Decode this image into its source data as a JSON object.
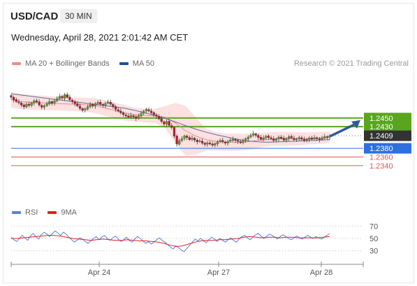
{
  "header": {
    "pair": "USD/CAD",
    "timeframe": "30 MIN",
    "datetime": "Wednesday, April 28, 2021 2:01:42 AM CET",
    "credit": "Research © 2021 Trading Central"
  },
  "legend": {
    "main": [
      {
        "label": "MA 20 + Bollinger Bands",
        "color": "#f08a8a"
      },
      {
        "label": "MA 50",
        "color": "#1f4e9c"
      }
    ],
    "rsi": [
      {
        "label": "RSI",
        "color": "#5b7fd9"
      },
      {
        "label": "9MA",
        "color": "#e02020"
      }
    ]
  },
  "colors": {
    "resistance": "#5aa51e",
    "pivot": "#2f6fe0",
    "support": "#e05555",
    "current": "#333333",
    "bullish": "#5aa51e",
    "bearish": "#c8102e",
    "band_fill": "#fde0e0",
    "arrow": "#2c5c98"
  },
  "chart_data": [
    {
      "type": "candlestick",
      "y_range": [
        1.2322,
        1.2545
      ],
      "x_tick_labels": [
        "Apr 24",
        "Apr 27",
        "Apr 28"
      ],
      "levels": [
        {
          "value": 1.245,
          "label": "1.2450",
          "kind": "resistance"
        },
        {
          "value": 1.243,
          "label": "1.2430",
          "kind": "resistance"
        },
        {
          "value": 1.2409,
          "label": "1.2409",
          "kind": "current"
        },
        {
          "value": 1.238,
          "label": "1.2380",
          "kind": "pivot"
        },
        {
          "value": 1.236,
          "label": "1.2360",
          "kind": "support"
        },
        {
          "value": 1.234,
          "label": "1.2340",
          "kind": "support"
        }
      ],
      "close_series": [
        1.2498,
        1.2492,
        1.2488,
        1.2485,
        1.248,
        1.2476,
        1.2482,
        1.2479,
        1.2485,
        1.249,
        1.2487,
        1.248,
        1.2475,
        1.2478,
        1.2483,
        1.2488,
        1.2484,
        1.249,
        1.2495,
        1.25,
        1.2496,
        1.2504,
        1.2498,
        1.2492,
        1.2488,
        1.2483,
        1.2478,
        1.2472,
        1.2468,
        1.2471,
        1.2476,
        1.2481,
        1.2478,
        1.2483,
        1.2486,
        1.2482,
        1.2479,
        1.2484,
        1.2487,
        1.2482,
        1.2476,
        1.247,
        1.2466,
        1.2462,
        1.2458,
        1.2455,
        1.2452,
        1.2456,
        1.2453,
        1.2449,
        1.2455,
        1.2461,
        1.2466,
        1.247,
        1.2466,
        1.2462,
        1.2458,
        1.2454,
        1.2448,
        1.2442,
        1.2436,
        1.2442,
        1.2433,
        1.2428,
        1.2408,
        1.239,
        1.2398,
        1.2402,
        1.2409,
        1.2405,
        1.24,
        1.2404,
        1.2399,
        1.2395,
        1.2397,
        1.2392,
        1.2389,
        1.2393,
        1.239,
        1.2387,
        1.2391,
        1.2395,
        1.2398,
        1.2395,
        1.2392,
        1.2396,
        1.2399,
        1.2401,
        1.2398,
        1.2396,
        1.2393,
        1.2397,
        1.2402,
        1.2406,
        1.241,
        1.2414,
        1.241,
        1.2405,
        1.2401,
        1.2404,
        1.2408,
        1.2405,
        1.2402,
        1.2398,
        1.2402,
        1.2406,
        1.2403,
        1.2399,
        1.2403,
        1.2407,
        1.2404,
        1.24,
        1.2402,
        1.2405,
        1.2401,
        1.2398,
        1.2401,
        1.2404,
        1.2401,
        1.2405,
        1.2402,
        1.24,
        1.2404,
        1.2407,
        1.2405,
        1.2409
      ],
      "ma50": [
        1.2506,
        1.2503,
        1.25,
        1.2497,
        1.2494,
        1.2491,
        1.2488,
        1.2485,
        1.2482,
        1.2479,
        1.2476,
        1.2473,
        1.2468,
        1.2462,
        1.2456,
        1.2449,
        1.2441,
        1.2432,
        1.2424,
        1.2417,
        1.2411,
        1.2406,
        1.2401,
        1.2397,
        1.2395,
        1.2394,
        1.2395,
        1.2396,
        1.2397,
        1.2398,
        1.2399,
        1.24
      ],
      "ma20": [
        1.2492,
        1.2488,
        1.2486,
        1.2485,
        1.2484,
        1.2483,
        1.2482,
        1.2481,
        1.2479,
        1.2474,
        1.2468,
        1.2462,
        1.2458,
        1.2456,
        1.2455,
        1.2452,
        1.2438,
        1.242,
        1.2408,
        1.24,
        1.2396,
        1.2394,
        1.2394,
        1.2395,
        1.2398,
        1.2401,
        1.2402,
        1.2402,
        1.2402,
        1.2403,
        1.2404,
        1.2405
      ],
      "bb_upper": [
        1.251,
        1.2506,
        1.2503,
        1.2502,
        1.25,
        1.2499,
        1.2498,
        1.2497,
        1.2496,
        1.2492,
        1.2486,
        1.248,
        1.2474,
        1.2472,
        1.2471,
        1.2478,
        1.2485,
        1.2478,
        1.245,
        1.2425,
        1.2417,
        1.2414,
        1.2414,
        1.2414,
        1.2415,
        1.2417,
        1.2418,
        1.2418,
        1.2417,
        1.2417,
        1.2418,
        1.2418
      ],
      "bb_lower": [
        1.2474,
        1.247,
        1.2469,
        1.2468,
        1.2468,
        1.2467,
        1.2466,
        1.2465,
        1.2462,
        1.2456,
        1.245,
        1.2444,
        1.2442,
        1.244,
        1.2439,
        1.2426,
        1.2391,
        1.2362,
        1.2366,
        1.2375,
        1.2375,
        1.2374,
        1.2374,
        1.2376,
        1.2381,
        1.2385,
        1.2386,
        1.2386,
        1.2387,
        1.2389,
        1.239,
        1.2392
      ],
      "forecast": {
        "from": 1.2409,
        "to": 1.245
      }
    },
    {
      "type": "line",
      "name": "RSI",
      "y_range": [
        15,
        85
      ],
      "y_ticks": [
        {
          "value": 70,
          "label": "70"
        },
        {
          "value": 50,
          "label": "50"
        },
        {
          "value": 30,
          "label": "30"
        }
      ],
      "rsi": [
        52,
        48,
        45,
        50,
        55,
        51,
        47,
        54,
        58,
        53,
        49,
        56,
        60,
        57,
        53,
        58,
        62,
        59,
        55,
        60,
        57,
        52,
        48,
        44,
        47,
        51,
        49,
        45,
        42,
        46,
        50,
        53,
        48,
        52,
        55,
        50,
        47,
        51,
        54,
        49,
        45,
        48,
        52,
        47,
        44,
        49,
        53,
        50,
        46,
        42,
        45,
        41,
        44,
        48,
        51,
        47,
        44,
        40,
        36,
        33,
        38,
        35,
        31,
        29,
        34,
        39,
        44,
        49,
        46,
        50,
        47,
        43,
        48,
        52,
        49,
        45,
        50,
        47,
        44,
        48,
        51,
        47,
        44,
        49,
        53,
        55,
        51,
        48,
        52,
        56,
        58,
        54,
        50,
        53,
        57,
        55,
        52,
        49,
        53,
        56,
        53,
        50,
        48,
        51,
        54,
        51,
        49,
        52,
        55,
        52,
        50,
        53,
        51,
        49,
        52,
        55,
        58
      ],
      "ma9": [
        50,
        50,
        51,
        52,
        53,
        54,
        55,
        55,
        54,
        52,
        50,
        49,
        48,
        47,
        48,
        49,
        48,
        47,
        47,
        48,
        47,
        46,
        46,
        45,
        44,
        42,
        39,
        37,
        38,
        41,
        44,
        46,
        47,
        47,
        48,
        48,
        49,
        50,
        52,
        53,
        52,
        51,
        52,
        52,
        51,
        52,
        52,
        51,
        51,
        51,
        51,
        52,
        53
      ]
    }
  ]
}
